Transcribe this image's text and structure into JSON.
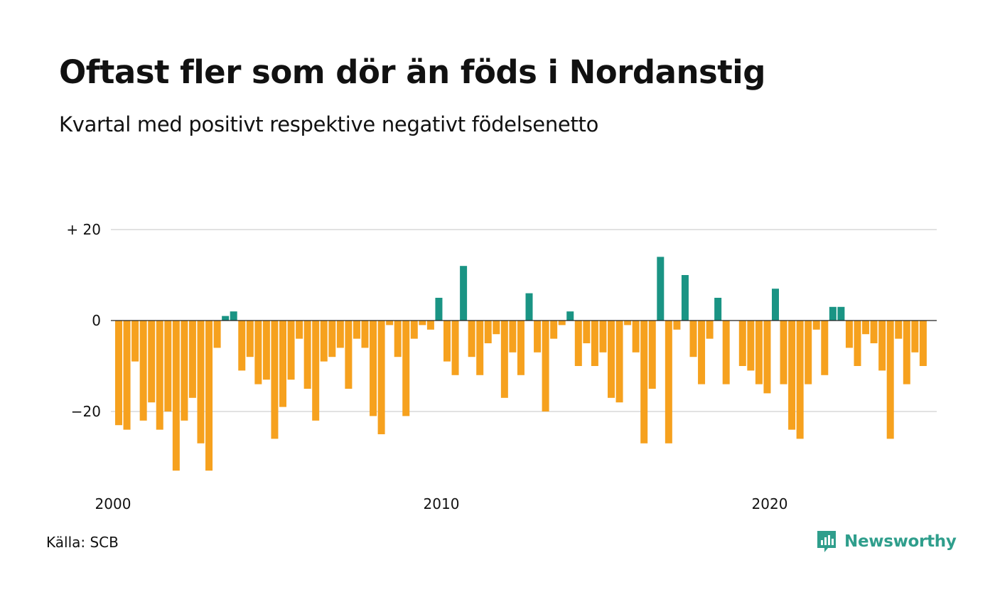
{
  "title": "Oftast fler som dör än föds i Nordanstig",
  "subtitle": "Kvartal med positivt respektive negativt födelsenetto",
  "source": "Källa: SCB",
  "brand": {
    "name": "Newsworthy",
    "icon": "newsworthy-logo-icon",
    "color": "#2f9e8c"
  },
  "colors": {
    "positive": "#1a9484",
    "negative": "#f6a11e",
    "grid": "#e2e2e2",
    "zero": "#222222"
  },
  "chart_data": {
    "type": "bar",
    "title": "Oftast fler som dör än föds i Nordanstig",
    "subtitle": "Kvartal med positivt respektive negativt födelsenetto",
    "x_ticks": [
      {
        "value": 2000,
        "label": "2000"
      },
      {
        "value": 2010,
        "label": "2010"
      },
      {
        "value": 2020,
        "label": "2020"
      }
    ],
    "y_ticks": [
      {
        "value": 20,
        "label": "+ 20"
      },
      {
        "value": 0,
        "label": "0"
      },
      {
        "value": -20,
        "label": "−20"
      }
    ],
    "ylim": [
      -35,
      22
    ],
    "start_year": 2000,
    "grid": true,
    "legend": "none",
    "values": [
      -23,
      -24,
      -9,
      -22,
      -18,
      -24,
      -20,
      -33,
      -22,
      -17,
      -27,
      -33,
      -6,
      1,
      2,
      -11,
      -8,
      -14,
      -13,
      -26,
      -19,
      -13,
      -4,
      -15,
      -22,
      -9,
      -8,
      -6,
      -15,
      -4,
      -6,
      -21,
      -25,
      -1,
      -8,
      -21,
      -4,
      -1,
      -2,
      5,
      -9,
      -12,
      12,
      -8,
      -12,
      -5,
      -3,
      -17,
      -7,
      -12,
      6,
      -7,
      -20,
      -4,
      -1,
      2,
      -10,
      -5,
      -10,
      -7,
      -17,
      -18,
      -1,
      -7,
      -27,
      -15,
      14,
      -27,
      -2,
      10,
      -8,
      -14,
      -4,
      5,
      -14,
      0,
      -10,
      -11,
      -14,
      -16,
      7,
      -14,
      -24,
      -26,
      -14,
      -2,
      -12,
      3,
      3,
      -6,
      -10,
      -3,
      -5,
      -11,
      -26,
      -4,
      -14,
      -7,
      -10
    ]
  }
}
